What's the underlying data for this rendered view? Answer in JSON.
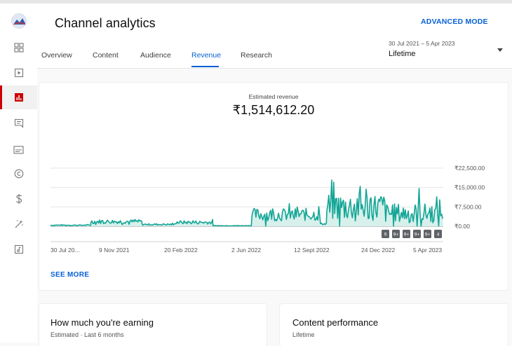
{
  "header": {
    "title": "Channel analytics",
    "advanced_mode": "ADVANCED MODE",
    "tabs": [
      {
        "label": "Overview"
      },
      {
        "label": "Content"
      },
      {
        "label": "Audience"
      },
      {
        "label": "Revenue"
      },
      {
        "label": "Research"
      }
    ],
    "active_tab": "Revenue",
    "date_range": "30 Jul 2021 – 5 Apr 2023",
    "period": "Lifetime"
  },
  "sidebar": {
    "items": [
      {
        "icon": "dashboard-icon"
      },
      {
        "icon": "content-icon"
      },
      {
        "icon": "analytics-icon",
        "active": true
      },
      {
        "icon": "comments-icon"
      },
      {
        "icon": "subtitles-icon"
      },
      {
        "icon": "copyright-icon"
      },
      {
        "icon": "earn-icon"
      },
      {
        "icon": "customization-icon"
      },
      {
        "icon": "audio-library-icon"
      }
    ],
    "accent": "#cc0000"
  },
  "revenue": {
    "metric_label": "Estimated revenue",
    "metric_value": "₹1,514,612.20",
    "see_more": "SEE MORE"
  },
  "chart_data": {
    "type": "area",
    "x_ticks": [
      "30 Jul 20...",
      "9 Nov 2021",
      "20 Feb 2022",
      "2 Jun 2022",
      "12 Sept 2022",
      "24 Dec 2022",
      "5 Apr 2023"
    ],
    "y_ticks": [
      "₹22,500.00",
      "₹15,000.00",
      "₹7,500.00",
      "₹0.00"
    ],
    "ylim": [
      0,
      22500
    ],
    "series": [
      {
        "color": "#12a595",
        "segments": [
          {
            "from": "30 Jul 2021",
            "to": "1 Oct 2021",
            "level": 400,
            "amp": 300
          },
          {
            "from": "1 Oct 2021",
            "to": "20 Dec 2021",
            "level": 1800,
            "amp": 1400
          },
          {
            "from": "20 Dec 2021",
            "to": "10 Feb 2022",
            "level": 700,
            "amp": 600
          },
          {
            "from": "10 Feb 2022",
            "to": "10 Apr 2022",
            "level": 1500,
            "amp": 1200
          },
          {
            "from": "10 Apr 2022",
            "to": "10 Jun 2022",
            "level": 200,
            "amp": 150
          },
          {
            "from": "10 Jun 2022",
            "to": "25 Sep 2022",
            "level": 4500,
            "amp": 4500
          },
          {
            "from": "25 Sep 2022",
            "to": "5 Oct 2022",
            "level": 900,
            "amp": 600
          },
          {
            "from": "5 Oct 2022",
            "to": "5 Jan 2023",
            "level": 7500,
            "amp": 10000
          },
          {
            "from": "5 Jan 2023",
            "to": "5 Apr 2023",
            "level": 5000,
            "amp": 7000
          }
        ]
      }
    ],
    "markers": [
      "9",
      "9+",
      "9+",
      "9+",
      "9+",
      "4"
    ]
  },
  "cards": [
    {
      "title": "How much you're earning",
      "subtitle": "Estimated · Last 6 months"
    },
    {
      "title": "Content performance",
      "subtitle": "Lifetime"
    }
  ]
}
